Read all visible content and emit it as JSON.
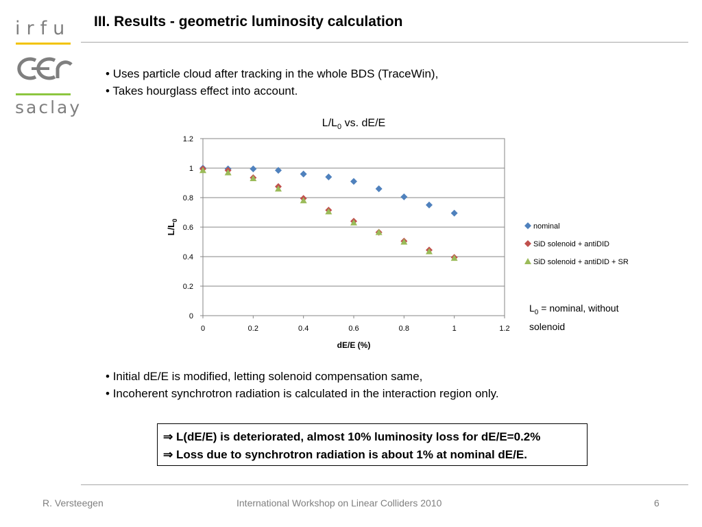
{
  "logo": {
    "top_text": "irfu",
    "bottom_text": "saclay",
    "mid_text": "cea"
  },
  "title": "III. Results - geometric luminosity calculation",
  "bullets_top": [
    "Uses particle cloud after tracking in the whole BDS (TraceWin),",
    "Takes hourglass effect into account."
  ],
  "chart_data": {
    "type": "scatter",
    "title": "L/L0 vs. dE/E",
    "xlabel": "dE/E (%)",
    "ylabel": "L/L0",
    "xlim": [
      0,
      1.2
    ],
    "ylim": [
      0,
      1.2
    ],
    "xticks": [
      "0",
      "0.2",
      "0.4",
      "0.6",
      "0.8",
      "1",
      "1.2"
    ],
    "yticks": [
      "0",
      "0.2",
      "0.4",
      "0.6",
      "0.8",
      "1",
      "1.2"
    ],
    "grid": "horizontal",
    "legend_position": "right",
    "series": [
      {
        "name": "nominal",
        "marker": "diamond",
        "color": "#4f81bd",
        "x": [
          0,
          0.1,
          0.2,
          0.3,
          0.4,
          0.5,
          0.6,
          0.7,
          0.8,
          0.9,
          1.0
        ],
        "y": [
          1.0,
          0.995,
          0.995,
          0.985,
          0.96,
          0.94,
          0.91,
          0.86,
          0.805,
          0.75,
          0.695
        ]
      },
      {
        "name": "SiD solenoid + antiDID",
        "marker": "diamond",
        "color": "#c0504d",
        "x": [
          0,
          0.1,
          0.2,
          0.3,
          0.4,
          0.5,
          0.6,
          0.7,
          0.8,
          0.9,
          1.0
        ],
        "y": [
          0.995,
          0.985,
          0.935,
          0.875,
          0.795,
          0.715,
          0.64,
          0.565,
          0.505,
          0.445,
          0.395
        ]
      },
      {
        "name": "SiD solenoid + antiDID + SR",
        "marker": "triangle",
        "color": "#9bbb59",
        "x": [
          0,
          0.1,
          0.2,
          0.3,
          0.4,
          0.5,
          0.6,
          0.7,
          0.8,
          0.9,
          1.0
        ],
        "y": [
          0.985,
          0.97,
          0.93,
          0.86,
          0.78,
          0.705,
          0.63,
          0.565,
          0.5,
          0.435,
          0.39
        ]
      }
    ]
  },
  "note": "L0 = nominal, without solenoid",
  "bullets_bottom": [
    "Initial dE/E is modified, letting solenoid compensation same,",
    "Incoherent synchrotron radiation is calculated in the interaction region only."
  ],
  "conclusion": [
    "L(dE/E) is deteriorated, almost 10% luminosity loss for dE/E=0.2%",
    "Loss due to synchrotron radiation is about 1% at nominal dE/E."
  ],
  "footer": {
    "author": "R. Versteegen",
    "event": "International Workshop on Linear Colliders 2010",
    "page": "6"
  }
}
